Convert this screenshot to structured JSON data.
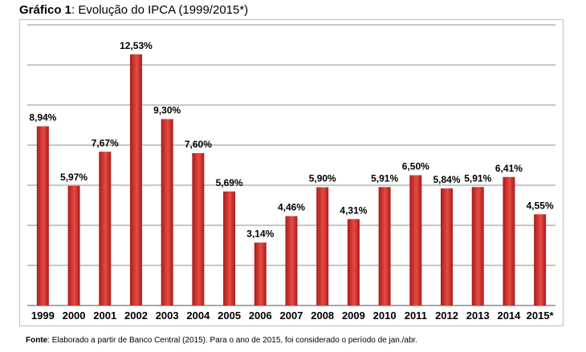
{
  "title": {
    "prefix": "Gráfico 1",
    "text": ": Evolução do IPCA (1999/2015*)"
  },
  "source": {
    "prefix": "Fonte",
    "text": ": Elaborado a partir de Banco Central (2015). Para o ano de 2015, foi considerado o período de jan./abr."
  },
  "colors": {
    "bar_light": "#e84a44",
    "bar_dark": "#a81d1b",
    "grid": "#8c8c8c"
  },
  "chart_data": {
    "type": "bar",
    "title": "Gráfico 1: Evolução do IPCA (1999/2015*)",
    "xlabel": "",
    "ylabel": "",
    "ylim": [
      0,
      14
    ],
    "grid_step": 2,
    "grid": true,
    "categories": [
      "1999",
      "2000",
      "2001",
      "2002",
      "2003",
      "2004",
      "2005",
      "2006",
      "2007",
      "2008",
      "2009",
      "2010",
      "2011",
      "2012",
      "2013",
      "2014",
      "2015*"
    ],
    "values": [
      8.94,
      5.97,
      7.67,
      12.53,
      9.3,
      7.6,
      5.69,
      3.14,
      4.46,
      5.9,
      4.31,
      5.91,
      6.5,
      5.84,
      5.91,
      6.41,
      4.55
    ],
    "labels": [
      "8,94%",
      "5,97%",
      "7,67%",
      "12,53%",
      "9,30%",
      "7,60%",
      "5,69%",
      "3,14%",
      "4,46%",
      "5,90%",
      "4,31%",
      "5,91%",
      "6,50%",
      "5,84%",
      "5,91%",
      "6,41%",
      "4,55%"
    ]
  }
}
